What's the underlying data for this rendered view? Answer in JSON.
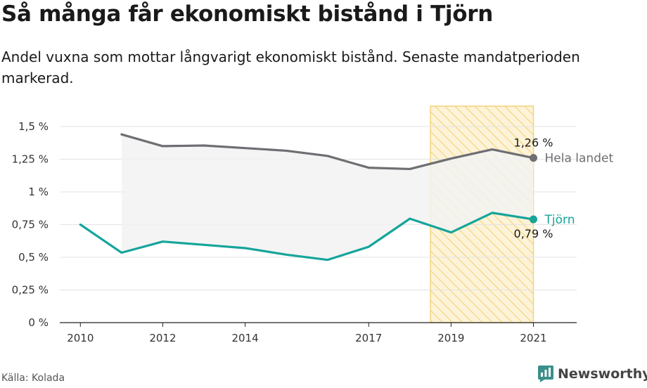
{
  "title": "Så många får ekonomiskt bistånd i Tjörn",
  "subtitle": "Andel vuxna som mottar långvarigt ekonomiskt bistånd. Senaste mandatperioden markerad.",
  "source": "Källa: Kolada",
  "brand": "Newsworthy",
  "chart_data": {
    "type": "line",
    "title": "Så många får ekonomiskt bistånd i Tjörn",
    "subtitle": "Andel vuxna som mottar långvarigt ekonomiskt bistånd. Senaste mandatperioden markerad.",
    "xlabel": "",
    "ylabel": "",
    "xlim": [
      2009.5,
      2022.05
    ],
    "ylim": [
      0,
      1.5
    ],
    "x_ticks": [
      2010,
      2012,
      2014,
      2017,
      2019,
      2021
    ],
    "x_tick_labels": [
      "2010",
      "2012",
      "2014",
      "2017",
      "2019",
      "2021"
    ],
    "y_ticks": [
      0,
      0.25,
      0.5,
      0.75,
      1,
      1.25,
      1.5
    ],
    "y_tick_labels": [
      "0 %",
      "0,25 %",
      "0,5 %",
      "0,75 %",
      "1 %",
      "1,25 %",
      "1,5 %"
    ],
    "grid": true,
    "highlight_period": [
      2018.5,
      2021
    ],
    "series": [
      {
        "name": "Hela landet",
        "color": "#6e6e73",
        "x": [
          2011,
          2012,
          2013,
          2014,
          2015,
          2016,
          2017,
          2018,
          2019,
          2020,
          2021
        ],
        "values": [
          1.44,
          1.35,
          1.355,
          1.335,
          1.315,
          1.275,
          1.185,
          1.175,
          1.255,
          1.325,
          1.26
        ],
        "end_label": "1,26 %"
      },
      {
        "name": "Tjörn",
        "color": "#16a59b",
        "x": [
          2010,
          2011,
          2012,
          2013,
          2014,
          2015,
          2016,
          2017,
          2018,
          2019,
          2020,
          2021
        ],
        "values": [
          0.75,
          0.535,
          0.62,
          0.595,
          0.57,
          0.52,
          0.48,
          0.58,
          0.795,
          0.69,
          0.84,
          0.79
        ],
        "end_label": "0,79 %"
      }
    ],
    "colors": {
      "grid": "#e3e3e3",
      "axis": "#222222",
      "highlight_fill": "#fdf3d8",
      "highlight_stripe": "#f3d27a",
      "shade": "#f2f2f2"
    }
  }
}
